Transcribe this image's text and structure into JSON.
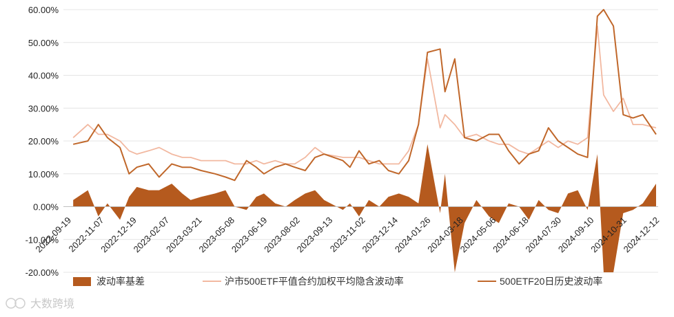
{
  "chart_data": {
    "type": "area",
    "title": "",
    "xlabel": "",
    "ylabel": "",
    "ylim": [
      -0.2,
      0.6
    ],
    "y_ticks": [
      -0.2,
      -0.1,
      0.0,
      0.1,
      0.2,
      0.3,
      0.4,
      0.5,
      0.6
    ],
    "y_tick_labels": [
      "-20.00%",
      "-10.00%",
      "0.00%",
      "10.00%",
      "20.00%",
      "30.00%",
      "40.00%",
      "50.00%",
      "60.00%"
    ],
    "x_tick_labels": [
      "2022-09-19",
      "2022-11-07",
      "2022-12-19",
      "2023-02-07",
      "2023-03-21",
      "2023-05-08",
      "2023-06-19",
      "2023-08-02",
      "2023-09-13",
      "2023-11-02",
      "2023-12-14",
      "2024-01-26",
      "2024-03-18",
      "2024-05-06",
      "2024-06-18",
      "2024-07-30",
      "2024-09-10",
      "2024-10-31",
      "2024-12-12"
    ],
    "grid": "horizontal",
    "legend_position": "bottom",
    "series": [
      {
        "name": "波动率基差",
        "kind": "area",
        "color": "#b55a1e",
        "x": [
          "2022-09-19",
          "2022-10-10",
          "2022-10-25",
          "2022-11-07",
          "2022-11-25",
          "2022-12-08",
          "2022-12-19",
          "2023-01-05",
          "2023-01-20",
          "2023-02-07",
          "2023-02-22",
          "2023-03-06",
          "2023-03-21",
          "2023-04-10",
          "2023-04-25",
          "2023-05-08",
          "2023-05-25",
          "2023-06-08",
          "2023-06-19",
          "2023-07-05",
          "2023-07-20",
          "2023-08-02",
          "2023-08-17",
          "2023-08-31",
          "2023-09-13",
          "2023-10-10",
          "2023-10-20",
          "2023-11-02",
          "2023-11-16",
          "2023-12-01",
          "2023-12-14",
          "2023-12-29",
          "2024-01-12",
          "2024-01-26",
          "2024-02-08",
          "2024-02-26",
          "2024-03-04",
          "2024-03-18",
          "2024-04-01",
          "2024-04-18",
          "2024-05-06",
          "2024-05-20",
          "2024-06-03",
          "2024-06-18",
          "2024-07-02",
          "2024-07-16",
          "2024-07-30",
          "2024-08-13",
          "2024-08-27",
          "2024-09-10",
          "2024-09-24",
          "2024-10-08",
          "2024-10-17",
          "2024-10-31",
          "2024-11-14",
          "2024-11-28",
          "2024-12-12",
          "2024-12-31"
        ],
        "values": [
          0.02,
          0.05,
          -0.03,
          0.01,
          -0.04,
          0.03,
          0.06,
          0.05,
          0.05,
          0.07,
          0.04,
          0.02,
          0.03,
          0.04,
          0.05,
          0.0,
          -0.01,
          0.03,
          0.04,
          0.01,
          0.0,
          0.02,
          0.04,
          0.05,
          0.02,
          -0.01,
          0.01,
          -0.03,
          0.02,
          0.0,
          0.03,
          0.04,
          0.03,
          0.01,
          0.19,
          -0.02,
          0.1,
          -0.2,
          -0.05,
          0.02,
          -0.03,
          -0.05,
          0.01,
          0.0,
          -0.04,
          0.02,
          -0.01,
          -0.02,
          0.04,
          0.05,
          -0.01,
          0.16,
          -0.2,
          -0.2,
          -0.02,
          -0.01,
          0.01,
          0.07
        ]
      },
      {
        "name": "沪市500ETF平值合约加权平均隐含波动率",
        "kind": "line",
        "color": "#f2b8a0",
        "x": [
          "2022-09-19",
          "2022-10-10",
          "2022-10-25",
          "2022-11-07",
          "2022-11-25",
          "2022-12-08",
          "2022-12-19",
          "2023-01-05",
          "2023-01-20",
          "2023-02-07",
          "2023-02-22",
          "2023-03-06",
          "2023-03-21",
          "2023-04-10",
          "2023-04-25",
          "2023-05-08",
          "2023-05-25",
          "2023-06-08",
          "2023-06-19",
          "2023-07-05",
          "2023-07-20",
          "2023-08-02",
          "2023-08-17",
          "2023-08-31",
          "2023-09-13",
          "2023-10-10",
          "2023-10-20",
          "2023-11-02",
          "2023-11-16",
          "2023-12-01",
          "2023-12-14",
          "2023-12-29",
          "2024-01-12",
          "2024-01-26",
          "2024-02-08",
          "2024-02-26",
          "2024-03-04",
          "2024-03-18",
          "2024-04-01",
          "2024-04-18",
          "2024-05-06",
          "2024-05-20",
          "2024-06-03",
          "2024-06-18",
          "2024-07-02",
          "2024-07-16",
          "2024-07-30",
          "2024-08-13",
          "2024-08-27",
          "2024-09-10",
          "2024-09-24",
          "2024-10-08",
          "2024-10-17",
          "2024-10-31",
          "2024-11-14",
          "2024-11-28",
          "2024-12-12",
          "2024-12-31"
        ],
        "values": [
          0.21,
          0.25,
          0.22,
          0.22,
          0.2,
          0.17,
          0.16,
          0.17,
          0.18,
          0.16,
          0.15,
          0.15,
          0.14,
          0.14,
          0.14,
          0.13,
          0.13,
          0.14,
          0.13,
          0.14,
          0.13,
          0.13,
          0.15,
          0.18,
          0.16,
          0.15,
          0.15,
          0.15,
          0.14,
          0.13,
          0.13,
          0.13,
          0.17,
          0.25,
          0.45,
          0.24,
          0.28,
          0.25,
          0.21,
          0.22,
          0.2,
          0.19,
          0.19,
          0.17,
          0.16,
          0.18,
          0.2,
          0.18,
          0.2,
          0.19,
          0.21,
          0.55,
          0.34,
          0.29,
          0.33,
          0.25,
          0.25,
          0.24
        ]
      },
      {
        "name": "500ETF20日历史波动率",
        "kind": "line",
        "color": "#c0672a",
        "x": [
          "2022-09-19",
          "2022-10-10",
          "2022-10-25",
          "2022-11-07",
          "2022-11-25",
          "2022-12-08",
          "2022-12-19",
          "2023-01-05",
          "2023-01-20",
          "2023-02-07",
          "2023-02-22",
          "2023-03-06",
          "2023-03-21",
          "2023-04-10",
          "2023-04-25",
          "2023-05-08",
          "2023-05-25",
          "2023-06-08",
          "2023-06-19",
          "2023-07-05",
          "2023-07-20",
          "2023-08-02",
          "2023-08-17",
          "2023-08-31",
          "2023-09-13",
          "2023-10-10",
          "2023-10-20",
          "2023-11-02",
          "2023-11-16",
          "2023-12-01",
          "2023-12-14",
          "2023-12-29",
          "2024-01-12",
          "2024-01-26",
          "2024-02-08",
          "2024-02-26",
          "2024-03-04",
          "2024-03-18",
          "2024-04-01",
          "2024-04-18",
          "2024-05-06",
          "2024-05-20",
          "2024-06-03",
          "2024-06-18",
          "2024-07-02",
          "2024-07-16",
          "2024-07-30",
          "2024-08-13",
          "2024-08-27",
          "2024-09-10",
          "2024-09-24",
          "2024-10-08",
          "2024-10-17",
          "2024-10-31",
          "2024-11-14",
          "2024-11-28",
          "2024-12-12",
          "2024-12-31"
        ],
        "values": [
          0.19,
          0.2,
          0.25,
          0.21,
          0.18,
          0.1,
          0.12,
          0.13,
          0.09,
          0.13,
          0.12,
          0.12,
          0.11,
          0.1,
          0.09,
          0.08,
          0.14,
          0.12,
          0.1,
          0.12,
          0.13,
          0.12,
          0.11,
          0.15,
          0.16,
          0.14,
          0.12,
          0.17,
          0.13,
          0.14,
          0.11,
          0.1,
          0.14,
          0.25,
          0.47,
          0.48,
          0.35,
          0.45,
          0.21,
          0.2,
          0.22,
          0.22,
          0.17,
          0.13,
          0.16,
          0.17,
          0.24,
          0.2,
          0.18,
          0.16,
          0.15,
          0.58,
          0.6,
          0.55,
          0.28,
          0.27,
          0.28,
          0.22
        ]
      }
    ]
  },
  "watermark": {
    "text": "大数跨境"
  }
}
